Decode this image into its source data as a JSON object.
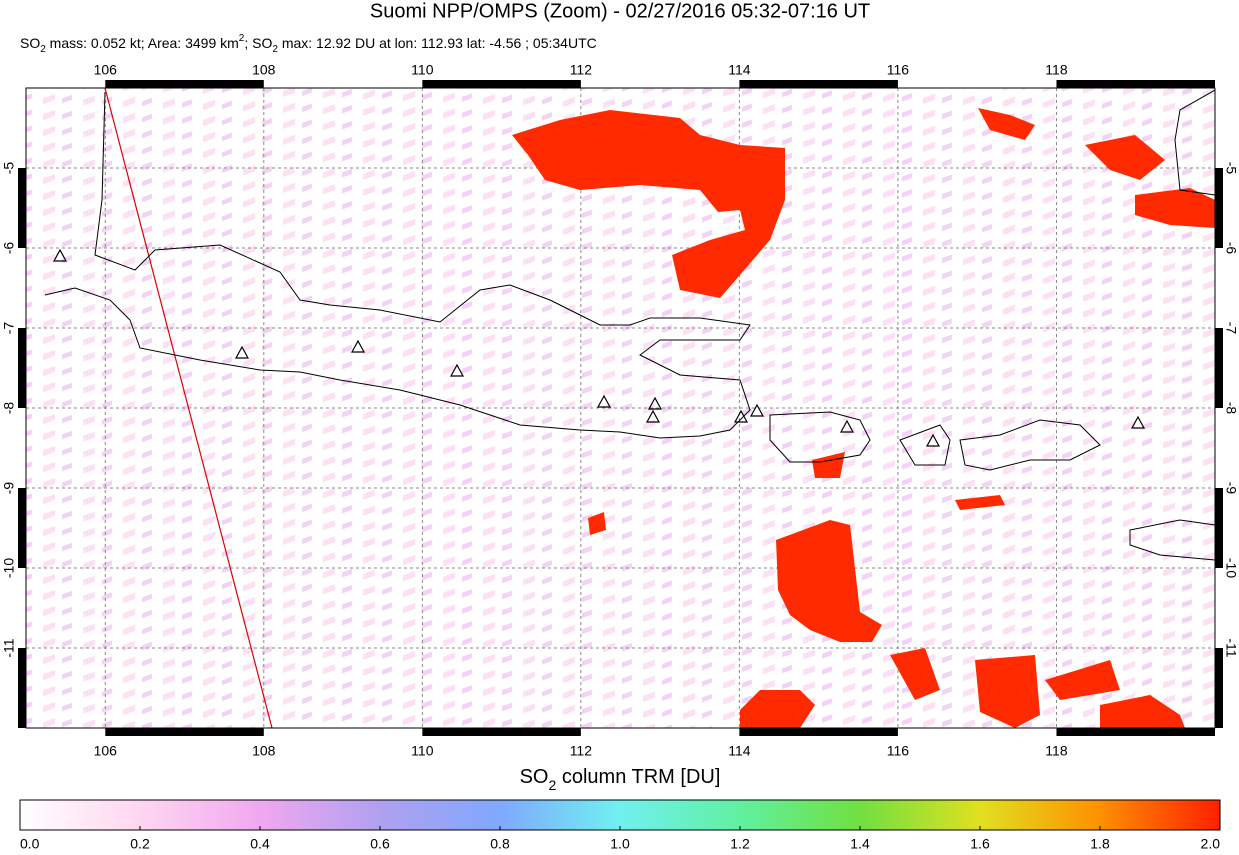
{
  "header": {
    "title": "Suomi NPP/OMPS (Zoom) - 02/27/2016 05:32-07:16 UT",
    "subtitle": [
      "SO",
      "2",
      " mass: 0.052 kt; Area: 3499 km",
      "2",
      "; SO",
      "2",
      " max: 12.92 DU at lon: 112.93 lat: -4.56 ; 05:34UTC"
    ]
  },
  "map": {
    "xlim": [
      105,
      120
    ],
    "ylim": [
      -12,
      -4
    ],
    "xticks": [
      106,
      108,
      110,
      112,
      114,
      116,
      118
    ],
    "yticks": [
      -5,
      -6,
      -7,
      -8,
      -9,
      -10,
      -11
    ]
  },
  "colorbar": {
    "label": [
      "SO",
      "2",
      " column TRM [DU]"
    ],
    "lim": [
      0,
      2
    ],
    "ticks": [
      {
        "value": 0,
        "label": "0.0"
      },
      0.2,
      0.4,
      0.6,
      0.8,
      {
        "value": 1,
        "label": "1.0"
      },
      1.2,
      1.4,
      1.6,
      1.8,
      {
        "value": 2,
        "label": "2.0"
      }
    ]
  }
}
